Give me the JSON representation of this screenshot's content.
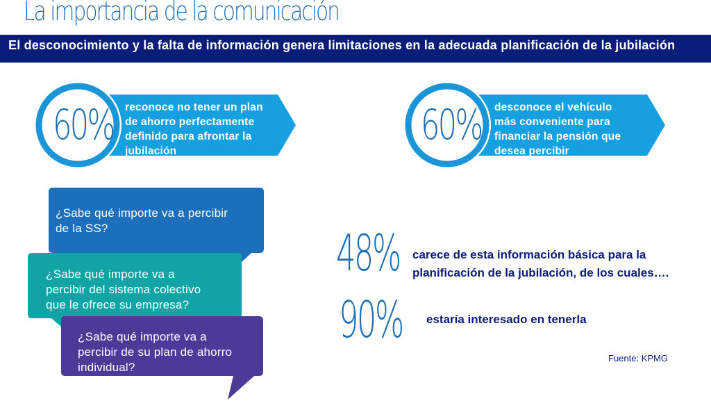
{
  "title": "La importancia de la comunicación",
  "banner": "El desconocimiento y la falta de información genera limitaciones en la adecuada planificación de la jubilación",
  "stat_left": {
    "number": "60%",
    "lines": [
      "reconoce no tener un plan",
      "de ahorro perfectamente",
      "definido para afrontar la",
      "jubilación"
    ]
  },
  "stat_right": {
    "number": "60%",
    "lines": [
      "desconoce el vehículo",
      "más conveniente para",
      "financiar la pensión que",
      "desea percibir"
    ]
  },
  "questions": [
    {
      "lines": [
        "¿Sabe qué importe va a percibir",
        "de la SS?"
      ],
      "color": "#1c6fbb"
    },
    {
      "lines": [
        "¿Sabe qué importe va a",
        "percibir del sistema colectivo",
        "que le ofrece su empresa?"
      ],
      "color": "#12a3a6"
    },
    {
      "lines": [
        "¿Sabe qué importe va a",
        "percibir de su plan de ahorro",
        "individual?"
      ],
      "color": "#4b3a97"
    }
  ],
  "stat_48": {
    "number": "48%",
    "lines": [
      "carece de esta información básica para la",
      "planificación de la jubilación, de los cuales…."
    ]
  },
  "stat_90": {
    "number": "90%",
    "text": "estaría interesado en tenerla"
  },
  "source": "Fuente: KPMG",
  "colors": {
    "title_blue": "#2270b8",
    "navy": "#0a1d7a",
    "ribbon_blue": "#17a0df",
    "ring_blue": "#1a95d8",
    "number_blue": "#1e6fb3"
  }
}
